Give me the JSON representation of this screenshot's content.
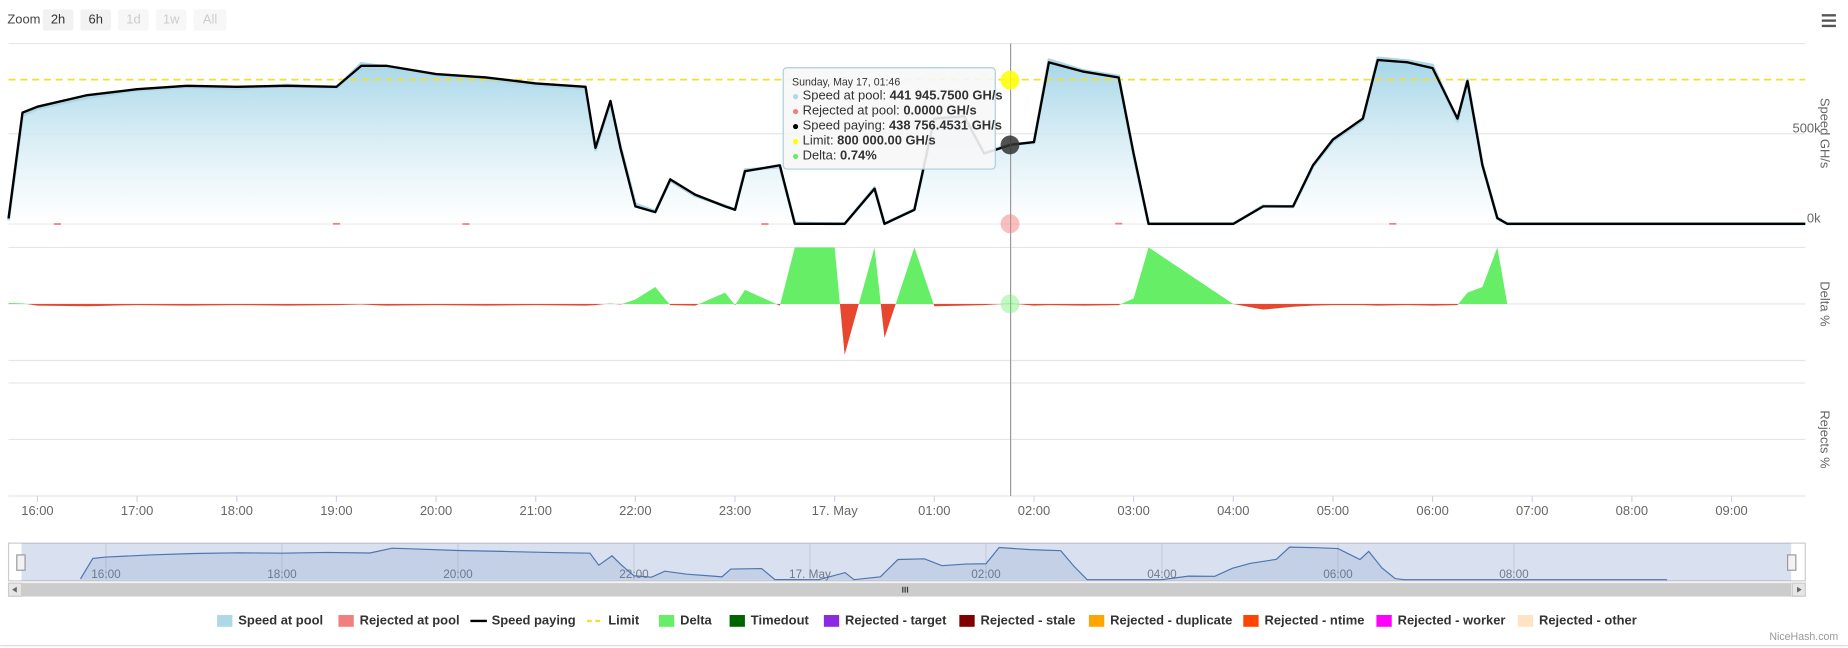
{
  "zoom": {
    "label": "Zoom",
    "buttons": [
      {
        "label": "2h",
        "enabled": true
      },
      {
        "label": "6h",
        "enabled": true
      },
      {
        "label": "1d",
        "enabled": false
      },
      {
        "label": "1w",
        "enabled": false
      },
      {
        "label": "All",
        "enabled": false
      }
    ]
  },
  "credit": "NiceHash.com",
  "tooltip": {
    "title": "Sunday, May 17, 01:46",
    "rows": [
      {
        "label": "Speed at pool: ",
        "value": "441 945.7500 GH/s",
        "color": "#add8e6"
      },
      {
        "label": "Rejected at pool: ",
        "value": "0.0000 GH/s",
        "color": "#f08080"
      },
      {
        "label": "Speed paying: ",
        "value": "438 756.4531 GH/s",
        "color": "#000000"
      },
      {
        "label": "Limit: ",
        "value": "800 000.00 GH/s",
        "color": "#ffff00"
      },
      {
        "label": "Delta: ",
        "value": "0.74%",
        "color": "#66ee66"
      }
    ]
  },
  "chart_data": {
    "type": "line",
    "y_label": "Speed GH/s",
    "y2_label": "Delta %",
    "y3_label": "Rejects %",
    "xlim": [
      15.71,
      33.74
    ],
    "xticks": [
      {
        "value": 16,
        "label": "16:00"
      },
      {
        "value": 17,
        "label": "17:00"
      },
      {
        "value": 18,
        "label": "18:00"
      },
      {
        "value": 19,
        "label": "19:00"
      },
      {
        "value": 20,
        "label": "20:00"
      },
      {
        "value": 21,
        "label": "21:00"
      },
      {
        "value": 22,
        "label": "22:00"
      },
      {
        "value": 23,
        "label": "23:00"
      },
      {
        "value": 24,
        "label": "17. May"
      },
      {
        "value": 25,
        "label": "01:00"
      },
      {
        "value": 26,
        "label": "02:00"
      },
      {
        "value": 27,
        "label": "03:00"
      },
      {
        "value": 28,
        "label": "04:00"
      },
      {
        "value": 29,
        "label": "05:00"
      },
      {
        "value": 30,
        "label": "06:00"
      },
      {
        "value": 31,
        "label": "07:00"
      },
      {
        "value": 32,
        "label": "08:00"
      },
      {
        "value": 33,
        "label": "09:00"
      }
    ],
    "ylim": [
      0,
      1000000
    ],
    "yticks": [
      {
        "value": 0,
        "label": "0k"
      },
      {
        "value": 500000,
        "label": "500k"
      }
    ],
    "y2lim": [
      -100,
      100
    ],
    "x": [
      15.71,
      15.85,
      16.0,
      16.5,
      17.0,
      17.5,
      18.0,
      18.5,
      19.0,
      19.25,
      19.5,
      20.0,
      20.5,
      21.0,
      21.5,
      21.6,
      21.75,
      21.85,
      22.0,
      22.2,
      22.35,
      22.6,
      22.9,
      23.0,
      23.1,
      23.45,
      23.6,
      24.0,
      24.1,
      24.4,
      24.5,
      24.8,
      25.0,
      25.3,
      25.5,
      25.77,
      26.0,
      26.15,
      26.5,
      26.85,
      27.0,
      27.15,
      28.0,
      28.3,
      28.6,
      28.8,
      29.0,
      29.3,
      29.45,
      29.75,
      30.0,
      30.25,
      30.35,
      30.5,
      30.65,
      30.75,
      33.74
    ],
    "series": [
      {
        "name": "Speed at pool",
        "color": "#add8e6",
        "type": "area",
        "values": [
          20000,
          600000,
          640000,
          700000,
          740000,
          760000,
          750000,
          770000,
          755000,
          890000,
          870000,
          825000,
          800000,
          770000,
          750000,
          410000,
          675000,
          430000,
          110000,
          70000,
          240000,
          155000,
          100000,
          80000,
          300000,
          315000,
          5000,
          0,
          0,
          200000,
          0,
          80000,
          570000,
          590000,
          395000,
          441945.75,
          450000,
          910000,
          850000,
          820000,
          380000,
          0,
          0,
          100000,
          95000,
          320000,
          460000,
          575000,
          920000,
          905000,
          880000,
          570000,
          800000,
          330000,
          30000,
          0,
          0
        ]
      },
      {
        "name": "Rejected at pool",
        "color": "#f08080",
        "type": "column",
        "x": [
          16.2,
          19.0,
          20.3,
          23.3,
          26.85,
          29.6
        ],
        "values": [
          4000,
          5000,
          4000,
          4000,
          6000,
          5000
        ]
      },
      {
        "name": "Speed paying",
        "color": "#000000",
        "type": "line",
        "values": [
          30000,
          617000,
          650000,
          714000,
          747000,
          766000,
          760000,
          766000,
          760000,
          877000,
          877000,
          831000,
          812000,
          779000,
          760000,
          422000,
          682000,
          422000,
          97000,
          65000,
          247000,
          162000,
          97000,
          78000,
          292000,
          325000,
          0,
          0,
          0,
          195000,
          0,
          78000,
          584000,
          597000,
          390000,
          438756.4531,
          454000,
          896000,
          844000,
          812000,
          390000,
          0,
          0,
          97000,
          97000,
          325000,
          468000,
          584000,
          909000,
          896000,
          864000,
          584000,
          792000,
          325000,
          32000,
          0,
          0
        ]
      },
      {
        "name": "Limit",
        "color": "#f0e030",
        "type": "line",
        "dash": true,
        "x": [
          15.71,
          33.74
        ],
        "values": [
          800000,
          800000
        ]
      },
      {
        "name": "Delta",
        "color": "#66ee66",
        "negative_color": "#e8472f",
        "type": "area",
        "axis": "y2",
        "values": [
          2,
          1,
          -3,
          -4,
          -2,
          -3,
          -2,
          -3,
          -2,
          -1,
          -3,
          -2,
          -3,
          -2,
          -3,
          -2,
          1,
          -1,
          8,
          30,
          -2,
          -3,
          20,
          -2,
          25,
          -3,
          100,
          100,
          -90,
          100,
          -60,
          100,
          -4,
          -3,
          -2,
          0.74,
          -3,
          -2,
          -3,
          -2,
          10,
          100,
          0,
          -10,
          -5,
          -3,
          -2,
          -2,
          -3,
          -2,
          -3,
          -2,
          20,
          30,
          100,
          0,
          0
        ]
      },
      {
        "name": "Timedout",
        "color": "#006400"
      },
      {
        "name": "Rejected - target",
        "color": "#8a2be2"
      },
      {
        "name": "Rejected - stale",
        "color": "#800000"
      },
      {
        "name": "Rejected - duplicate",
        "color": "#ffa500"
      },
      {
        "name": "Rejected - ntime",
        "color": "#ff4500"
      },
      {
        "name": "Rejected - worker",
        "color": "#ff00ff"
      },
      {
        "name": "Rejected - other",
        "color": "#ffe4c4"
      }
    ],
    "navigator": {
      "xlim": [
        15.04,
        35.15
      ],
      "xticks": [
        {
          "value": 16,
          "label": "16:00"
        },
        {
          "value": 18,
          "label": "18:00"
        },
        {
          "value": 20,
          "label": "20:00"
        },
        {
          "value": 22,
          "label": "22:00"
        },
        {
          "value": 24,
          "label": "17. May"
        },
        {
          "value": 26,
          "label": "02:00"
        },
        {
          "value": 28,
          "label": "04:00"
        },
        {
          "value": 30,
          "label": "06:00"
        },
        {
          "value": 32,
          "label": "08:00"
        }
      ]
    }
  }
}
